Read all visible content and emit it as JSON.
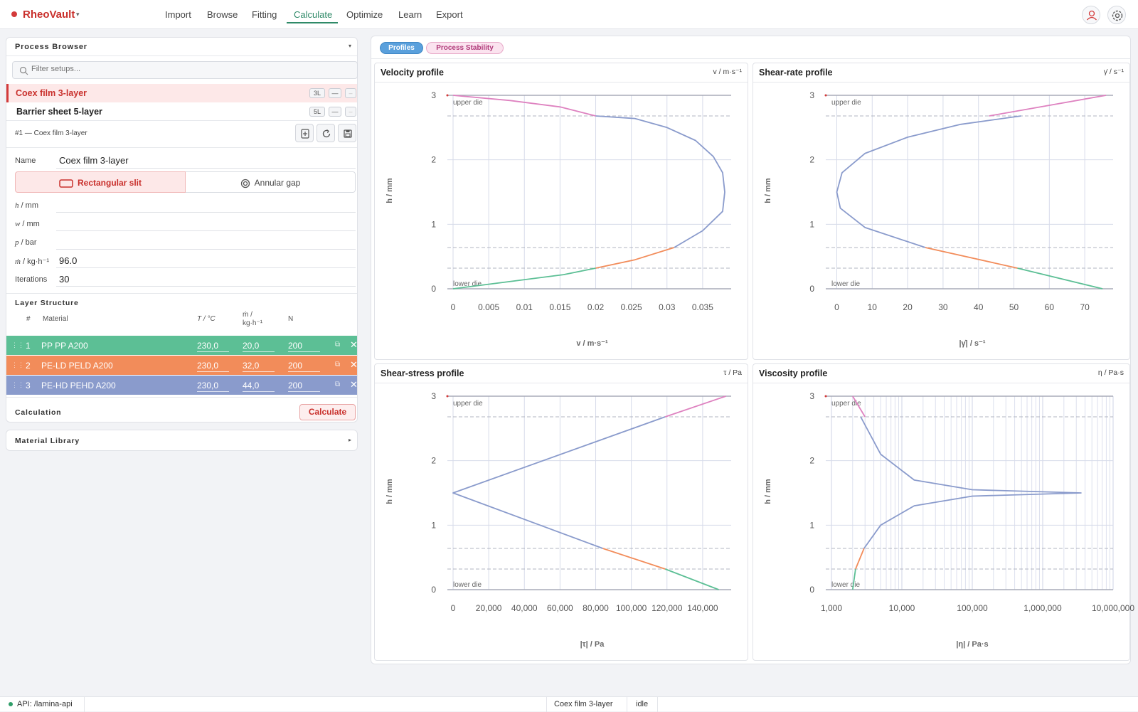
{
  "app": {
    "name": "RheoVault"
  },
  "nav": {
    "items": [
      "Import",
      "Browse",
      "Fitting",
      "Calculate",
      "Optimize",
      "Learn",
      "Export"
    ],
    "active": "Calculate"
  },
  "colors": {
    "brand": "#c9302c",
    "accent": "#2f8a68",
    "layer1": "#5cbf95",
    "layer2": "#f28c5a",
    "layer3": "#8a9bcc",
    "upper_trace": "#de82c0"
  },
  "icons": {
    "user": "user-icon",
    "settings": "gear-icon"
  },
  "process_browser": {
    "title": "Process Browser",
    "filter_placeholder": "Filter setups...",
    "setups": [
      {
        "name": "Coex film 3-layer",
        "badge": "3L",
        "selected": true
      },
      {
        "name": "Barrier sheet 5-layer",
        "badge": "5L",
        "selected": false
      }
    ],
    "detail_header": "#1 — Coex film 3-layer",
    "name_label": "Name",
    "name_value": "Coex film 3-layer",
    "geometry": {
      "slit": "Rectangular slit",
      "annular": "Annular gap",
      "selected": "slit"
    },
    "fields": [
      {
        "sym": "h",
        "unit": "/ mm",
        "value": ""
      },
      {
        "sym": "w",
        "unit": "/ mm",
        "value": ""
      },
      {
        "sym": "p",
        "unit": "/ bar",
        "value": ""
      },
      {
        "sym": "ṁ",
        "unit": "/ kg·h⁻¹",
        "value": "96.0"
      },
      {
        "sym": "",
        "unit": "Iterations",
        "value": "30"
      }
    ],
    "layer_structure": {
      "title": "Layer Structure",
      "headers": {
        "num": "#",
        "material": "Material",
        "temp": "T / °C",
        "mdot1": "ṁ /",
        "mdot2": "kg·h⁻¹",
        "n": "N"
      },
      "layers": [
        {
          "num": "1",
          "material": "PP PP A200",
          "temp": "230,0",
          "mdot": "20,0",
          "n": "200"
        },
        {
          "num": "2",
          "material": "PE-LD PELD A200",
          "temp": "230,0",
          "mdot": "32,0",
          "n": "200"
        },
        {
          "num": "3",
          "material": "PE-HD PEHD A200",
          "temp": "230,0",
          "mdot": "44,0",
          "n": "200"
        }
      ]
    },
    "calculation_label": "Calculation",
    "calculate_button": "Calculate"
  },
  "material_library": {
    "title": "Material Library"
  },
  "tabs": {
    "profiles": "Profiles",
    "stability": "Process Stability",
    "active": "profiles"
  },
  "annotations": {
    "upper": "upper die",
    "lower": "lower die"
  },
  "chart_data": [
    {
      "type": "line",
      "title": "Velocity profile",
      "unit_label": "v / m·s⁻¹",
      "xlabel": "v / m·s⁻¹",
      "ylabel": "h / mm",
      "xlim": [
        0,
        0.039
      ],
      "ylim": [
        0,
        3
      ],
      "xticks": [
        0,
        0.005,
        0.01,
        0.015,
        0.02,
        0.025,
        0.03,
        0.035
      ],
      "xtick_labels": [
        "0",
        "0.005",
        "0.01",
        "0.015",
        "0.02",
        "0.025",
        "0.03",
        "0.035"
      ],
      "yticks": [
        0,
        1,
        2,
        3
      ],
      "interfaces_h": [
        0.32,
        0.64,
        2.68
      ],
      "series": [
        {
          "layer": 1,
          "points": [
            [
              0,
              0
            ],
            [
              0.0085,
              0.12
            ],
            [
              0.0155,
              0.22
            ],
            [
              0.02,
              0.32
            ]
          ]
        },
        {
          "layer": 2,
          "points": [
            [
              0.02,
              0.32
            ],
            [
              0.0255,
              0.45
            ],
            [
              0.031,
              0.64
            ]
          ]
        },
        {
          "layer": 3,
          "points": [
            [
              0.031,
              0.64
            ],
            [
              0.035,
              0.9
            ],
            [
              0.0378,
              1.2
            ],
            [
              0.0381,
              1.5
            ],
            [
              0.0378,
              1.8
            ],
            [
              0.0365,
              2.05
            ],
            [
              0.034,
              2.3
            ],
            [
              0.03,
              2.5
            ],
            [
              0.0255,
              2.64
            ],
            [
              0.02,
              2.68
            ]
          ]
        },
        {
          "layer": "upper",
          "points": [
            [
              0,
              3
            ],
            [
              0.008,
              2.92
            ],
            [
              0.015,
              2.82
            ],
            [
              0.02,
              2.68
            ]
          ]
        }
      ]
    },
    {
      "type": "line",
      "title": "Shear-rate profile",
      "unit_label": "γ̇ / s⁻¹",
      "xlabel": "|γ̇| / s⁻¹",
      "ylabel": "h / mm",
      "xlim": [
        -1.5,
        78
      ],
      "ylim": [
        0,
        3
      ],
      "xticks": [
        0,
        10,
        20,
        30,
        40,
        50,
        60,
        70
      ],
      "xtick_labels": [
        "0",
        "10",
        "20",
        "30",
        "40",
        "50",
        "60",
        "70"
      ],
      "yticks": [
        0,
        1,
        2,
        3
      ],
      "interfaces_h": [
        0.32,
        0.64,
        2.68
      ],
      "series": [
        {
          "layer": 1,
          "points": [
            [
              75,
              0
            ],
            [
              51,
              0.32
            ]
          ]
        },
        {
          "layer": 2,
          "points": [
            [
              51,
              0.32
            ],
            [
              25,
              0.64
            ]
          ]
        },
        {
          "layer": 3,
          "points": [
            [
              25,
              0.64
            ],
            [
              8,
              0.95
            ],
            [
              1,
              1.25
            ],
            [
              0,
              1.5
            ],
            [
              1.5,
              1.8
            ],
            [
              8,
              2.1
            ],
            [
              20,
              2.35
            ],
            [
              35,
              2.55
            ],
            [
              52,
              2.68
            ]
          ]
        },
        {
          "layer": "upper",
          "points": [
            [
              43,
              2.68
            ],
            [
              76,
              3
            ]
          ]
        }
      ]
    },
    {
      "type": "line",
      "title": "Shear-stress profile",
      "unit_label": "τ / Pa",
      "xlabel": "|τ| / Pa",
      "ylabel": "h / mm",
      "xlim": [
        0,
        156000
      ],
      "ylim": [
        0,
        3
      ],
      "xticks": [
        0,
        20000,
        40000,
        60000,
        80000,
        100000,
        120000,
        140000
      ],
      "xtick_labels": [
        "0",
        "20,000",
        "40,000",
        "60,000",
        "80,000",
        "100,000",
        "120,000",
        "140,000"
      ],
      "yticks": [
        0,
        1,
        2,
        3
      ],
      "interfaces_h": [
        0.32,
        0.64,
        2.68
      ],
      "series": [
        {
          "layer": 1,
          "points": [
            [
              149000,
              0
            ],
            [
              119000,
              0.32
            ]
          ]
        },
        {
          "layer": 2,
          "points": [
            [
              119000,
              0.32
            ],
            [
              84000,
              0.64
            ]
          ]
        },
        {
          "layer": 3,
          "points": [
            [
              84000,
              0.64
            ],
            [
              0,
              1.5
            ],
            [
              119000,
              2.68
            ]
          ]
        },
        {
          "layer": "upper",
          "points": [
            [
              119000,
              2.68
            ],
            [
              153000,
              3
            ]
          ]
        }
      ]
    },
    {
      "type": "line",
      "title": "Viscosity profile",
      "unit_label": "η / Pa·s",
      "xlabel": "|η| / Pa·s",
      "ylabel": "h / mm",
      "xscale": "log",
      "xlim": [
        1000,
        10000000
      ],
      "ylim": [
        0,
        3
      ],
      "xticks": [
        1000,
        10000,
        100000,
        1000000,
        10000000
      ],
      "xtick_labels": [
        "1,000",
        "10,000",
        "100,000",
        "1,000,000",
        "10,000,000"
      ],
      "yticks": [
        0,
        1,
        2,
        3
      ],
      "interfaces_h": [
        0.32,
        0.64,
        2.68
      ],
      "series": [
        {
          "layer": 1,
          "points": [
            [
              2000,
              0
            ],
            [
              2200,
              0.32
            ]
          ]
        },
        {
          "layer": 2,
          "points": [
            [
              2200,
              0.32
            ],
            [
              2900,
              0.64
            ]
          ]
        },
        {
          "layer": 3,
          "points": [
            [
              2900,
              0.64
            ],
            [
              5000,
              1.0
            ],
            [
              15000,
              1.3
            ],
            [
              100000,
              1.45
            ],
            [
              3500000,
              1.5
            ],
            [
              100000,
              1.55
            ],
            [
              15000,
              1.7
            ],
            [
              5000,
              2.1
            ],
            [
              2600,
              2.68
            ]
          ]
        },
        {
          "layer": "upper",
          "points": [
            [
              2000,
              3
            ],
            [
              3000,
              2.68
            ]
          ]
        }
      ]
    }
  ],
  "status": {
    "api": "API: /lamina-api",
    "current": "Coex film 3-layer",
    "state": "idle"
  }
}
